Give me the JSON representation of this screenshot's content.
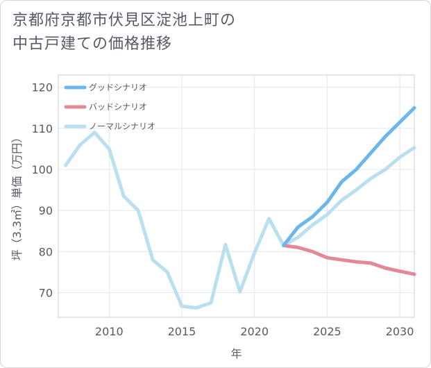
{
  "title_lines": [
    "京都府京都市伏見区淀池上町の",
    "中古戸建ての価格推移"
  ],
  "chart_data": {
    "type": "line",
    "xlabel": "年",
    "ylabel": "坪（3.3㎡）単価（万円）",
    "xlim": [
      2006.5,
      2031
    ],
    "ylim": [
      64,
      123
    ],
    "xticks": [
      2010,
      2015,
      2020,
      2025,
      2030
    ],
    "yticks": [
      70,
      80,
      90,
      100,
      110,
      120
    ],
    "grid": true,
    "legend_position": "top-left",
    "series": [
      {
        "name": "グッドシナリオ",
        "color": "#6bb7ec",
        "x": [
          2022,
          2023,
          2024,
          2025,
          2026,
          2027,
          2028,
          2029,
          2030,
          2031
        ],
        "values": [
          81.5,
          86,
          88.5,
          92,
          97,
          100,
          104,
          108,
          111.5,
          115
        ]
      },
      {
        "name": "バッドシナリオ",
        "color": "#e28a94",
        "x": [
          2022,
          2023,
          2024,
          2025,
          2026,
          2027,
          2028,
          2029,
          2030,
          2031
        ],
        "values": [
          81.5,
          81,
          80,
          78.5,
          78,
          77.5,
          77.2,
          76,
          75.2,
          74.5
        ]
      },
      {
        "name": "ノーマルシナリオ",
        "color": "#badff0",
        "x": [
          2007,
          2008,
          2009,
          2010,
          2011,
          2012,
          2013,
          2014,
          2015,
          2016,
          2017,
          2018,
          2019,
          2020,
          2021,
          2022,
          2023,
          2024,
          2025,
          2026,
          2027,
          2028,
          2029,
          2030,
          2031
        ],
        "values": [
          101,
          106,
          109,
          105,
          93.5,
          90,
          78,
          75,
          66.7,
          66.3,
          67.5,
          81.7,
          70.2,
          79.7,
          88,
          81.5,
          83.5,
          86.5,
          89,
          92.5,
          95,
          97.8,
          100,
          103,
          105.3
        ]
      }
    ]
  }
}
